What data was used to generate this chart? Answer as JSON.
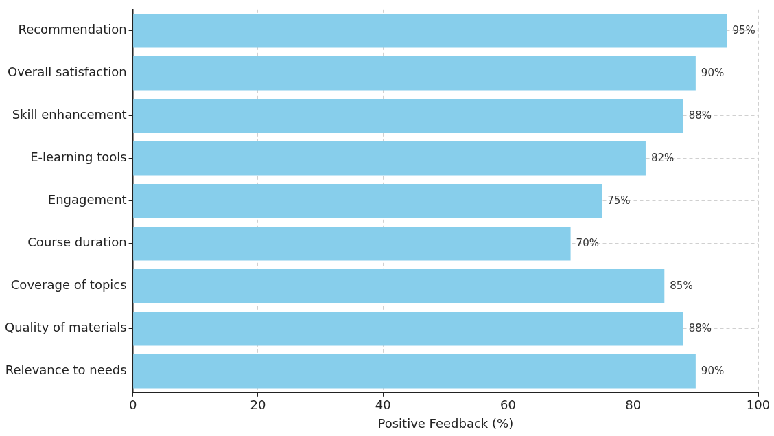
{
  "chart_data": {
    "type": "bar",
    "orientation": "horizontal",
    "xlabel": "Positive Feedback (%)",
    "categories": [
      "Recommendation",
      "Overall satisfaction",
      "Skill enhancement",
      "E-learning tools",
      "Engagement",
      "Course duration",
      "Coverage of topics",
      "Quality of materials",
      "Relevance to needs"
    ],
    "values": [
      95,
      90,
      88,
      82,
      75,
      70,
      85,
      88,
      90
    ],
    "value_labels": [
      "95%",
      "90%",
      "88%",
      "82%",
      "75%",
      "70%",
      "85%",
      "88%",
      "90%"
    ],
    "color": "#87ceeb",
    "xlim": [
      0,
      100
    ],
    "xticks": [
      0,
      20,
      40,
      60,
      80,
      100
    ],
    "grid": true,
    "legend": false
  }
}
